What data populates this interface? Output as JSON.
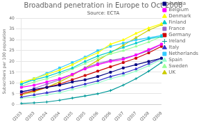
{
  "chart_data": {
    "type": "line",
    "title": "Broadband penetration in Europe to Oct 2008",
    "annotations": [
      "Source: ECTA"
    ],
    "ylabel": "Subscribers per 100 population",
    "categories": [
      "Q103",
      "Q303",
      "Q104",
      "Q304",
      "Q105",
      "Q305",
      "Q106",
      "Q306",
      "Q107",
      "Q307",
      "Q108",
      "Q308"
    ],
    "ylim": [
      0,
      40
    ],
    "yticks": [
      0,
      5,
      10,
      15,
      20,
      25,
      30,
      35,
      40
    ],
    "grid": "y",
    "legend": "right",
    "series": [
      {
        "name": "Austria",
        "color": "#000080",
        "marker": "square",
        "values": [
          6.0,
          7.0,
          8.0,
          9.0,
          10.5,
          11.5,
          13.0,
          15.0,
          17.0,
          18.5,
          20.0,
          21.5
        ]
      },
      {
        "name": "Belgium",
        "color": "#FF00FF",
        "marker": "square",
        "values": [
          8.0,
          9.0,
          10.5,
          12.0,
          14.0,
          16.5,
          18.5,
          20.0,
          21.0,
          23.0,
          25.5,
          28.0
        ]
      },
      {
        "name": "Denmark",
        "color": "#FFFF00",
        "marker": "triangle",
        "values": [
          10.5,
          12.0,
          14.0,
          16.0,
          18.5,
          21.5,
          24.0,
          28.0,
          30.0,
          33.0,
          35.5,
          37.5
        ]
      },
      {
        "name": "Finland",
        "color": "#00CCCC",
        "marker": "triangle",
        "values": [
          9.5,
          11.5,
          13.0,
          15.0,
          17.0,
          20.0,
          22.5,
          24.5,
          26.5,
          28.5,
          30.5,
          31.5
        ]
      },
      {
        "name": "France",
        "color": "#9966CC",
        "marker": "square",
        "values": [
          5.5,
          7.5,
          9.5,
          11.5,
          14.0,
          17.0,
          19.0,
          20.5,
          21.5,
          23.0,
          25.0,
          28.0
        ]
      },
      {
        "name": "Germany",
        "color": "#CC0000",
        "marker": "square",
        "values": [
          5.0,
          6.5,
          8.0,
          9.5,
          11.5,
          13.5,
          15.5,
          17.5,
          19.5,
          21.5,
          24.0,
          27.0
        ]
      },
      {
        "name": "Ireland",
        "color": "#009999",
        "marker": "plus",
        "values": [
          0.5,
          0.8,
          1.2,
          2.0,
          3.0,
          4.0,
          5.0,
          6.5,
          9.0,
          12.0,
          15.5,
          19.5
        ]
      },
      {
        "name": "Italy",
        "color": "#3333CC",
        "marker": "triangle",
        "values": [
          3.5,
          4.5,
          5.5,
          6.5,
          8.0,
          9.5,
          11.0,
          13.0,
          14.5,
          16.5,
          19.0,
          21.5
        ]
      },
      {
        "name": "Netherlands",
        "color": "#33CCFF",
        "marker": "square",
        "values": [
          9.5,
          12.0,
          14.5,
          17.0,
          19.5,
          22.0,
          25.0,
          27.0,
          28.5,
          30.0,
          31.0,
          32.0
        ]
      },
      {
        "name": "Spain",
        "color": "#99FFCC",
        "marker": "triangle",
        "values": [
          3.0,
          3.5,
          4.5,
          5.5,
          7.0,
          8.5,
          10.0,
          12.0,
          13.5,
          15.5,
          18.0,
          21.0
        ]
      },
      {
        "name": "Sweden",
        "color": "#99FF99",
        "marker": "triangle",
        "values": [
          8.5,
          10.5,
          12.0,
          14.0,
          16.5,
          19.0,
          21.5,
          23.5,
          25.0,
          27.0,
          29.0,
          31.5
        ]
      },
      {
        "name": "UK",
        "color": "#CCCC00",
        "marker": "triangle",
        "values": [
          4.5,
          6.0,
          8.0,
          10.5,
          13.5,
          17.0,
          20.5,
          24.0,
          27.5,
          31.0,
          34.5,
          37.0
        ]
      }
    ]
  }
}
